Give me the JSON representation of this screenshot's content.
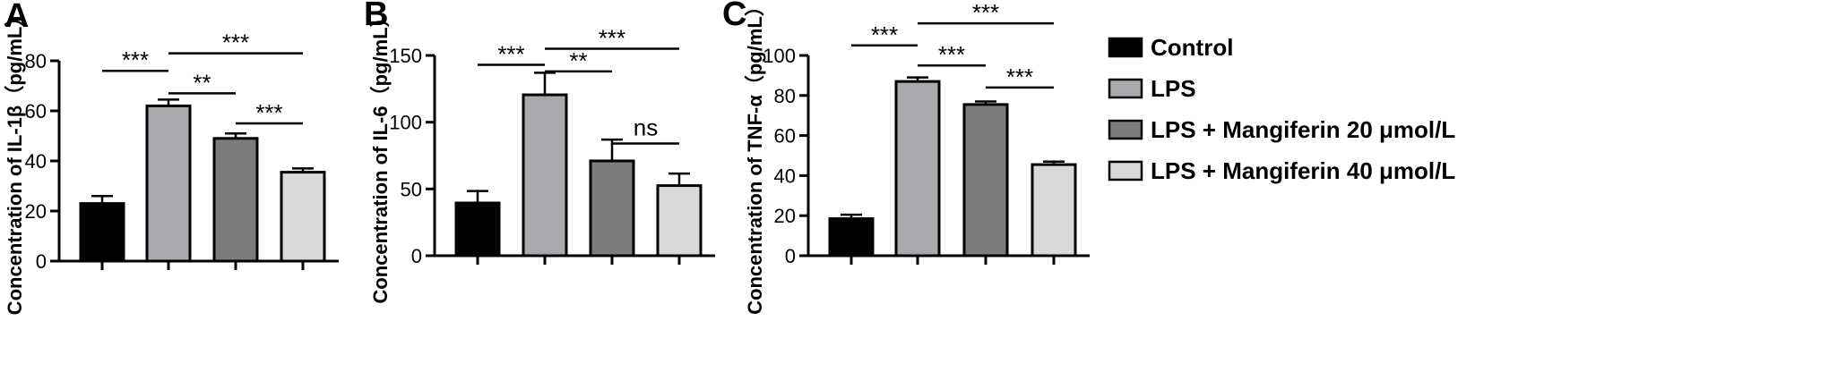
{
  "legend": [
    {
      "label": "Control",
      "color": "#000000"
    },
    {
      "label": "LPS",
      "color": "#a8a8ad"
    },
    {
      "label": "LPS + Mangiferin 20 μmol/L",
      "color": "#7c7c7c"
    },
    {
      "label": "LPS + Mangiferin 40 μmol/L",
      "color": "#d9d9d9"
    }
  ],
  "chart_data": [
    {
      "type": "bar",
      "panel": "A",
      "ylabel": "Concentration of IL-1β（pg/mL）",
      "ylim": [
        0,
        80
      ],
      "yticks": [
        "0",
        "20",
        "40",
        "60",
        "80"
      ],
      "categories": [
        "Control",
        "LPS",
        "LPS + Mangiferin 20 μmol/L",
        "LPS + Mangiferin 40 μmol/L"
      ],
      "values": [
        23,
        62,
        49,
        35.5
      ],
      "errors": [
        3,
        2.5,
        2,
        1.5
      ],
      "significance": [
        {
          "from": 0,
          "to": 1,
          "label": "***",
          "level": 76
        },
        {
          "from": 1,
          "to": 2,
          "label": "**",
          "level": 67
        },
        {
          "from": 1,
          "to": 3,
          "label": "***",
          "level": 83
        },
        {
          "from": 2,
          "to": 3,
          "label": "***",
          "level": 55
        }
      ]
    },
    {
      "type": "bar",
      "panel": "B",
      "ylabel": "Concentration of IL-6（pg/mL）",
      "ylim": [
        0,
        150
      ],
      "yticks": [
        "0",
        "50",
        "100",
        "150"
      ],
      "categories": [
        "Control",
        "LPS",
        "LPS + Mangiferin 20 μmol/L",
        "LPS + Mangiferin 40 μmol/L"
      ],
      "values": [
        39.5,
        120.5,
        71,
        52.5
      ],
      "errors": [
        9,
        16.5,
        16,
        9
      ],
      "significance": [
        {
          "from": 0,
          "to": 1,
          "label": "***",
          "level": 143
        },
        {
          "from": 1,
          "to": 2,
          "label": "**",
          "level": 138
        },
        {
          "from": 1,
          "to": 3,
          "label": "***",
          "level": 155
        },
        {
          "from": 2,
          "to": 3,
          "label": "ns",
          "level": 84
        }
      ]
    },
    {
      "type": "bar",
      "panel": "C",
      "ylabel": "Concentration of TNF-α（pg/mL）",
      "ylim": [
        0,
        100
      ],
      "yticks": [
        "0",
        "20",
        "40",
        "60",
        "80",
        "100"
      ],
      "categories": [
        "Control",
        "LPS",
        "LPS + Mangiferin 20 μmol/L",
        "LPS + Mangiferin 40 μmol/L"
      ],
      "values": [
        18.5,
        87,
        75.5,
        45.5
      ],
      "errors": [
        2,
        2,
        1.5,
        1.5
      ],
      "significance": [
        {
          "from": 0,
          "to": 1,
          "label": "***",
          "level": 105
        },
        {
          "from": 1,
          "to": 2,
          "label": "***",
          "level": 95
        },
        {
          "from": 1,
          "to": 3,
          "label": "***",
          "level": 116
        },
        {
          "from": 2,
          "to": 3,
          "label": "***",
          "level": 84
        }
      ]
    }
  ]
}
